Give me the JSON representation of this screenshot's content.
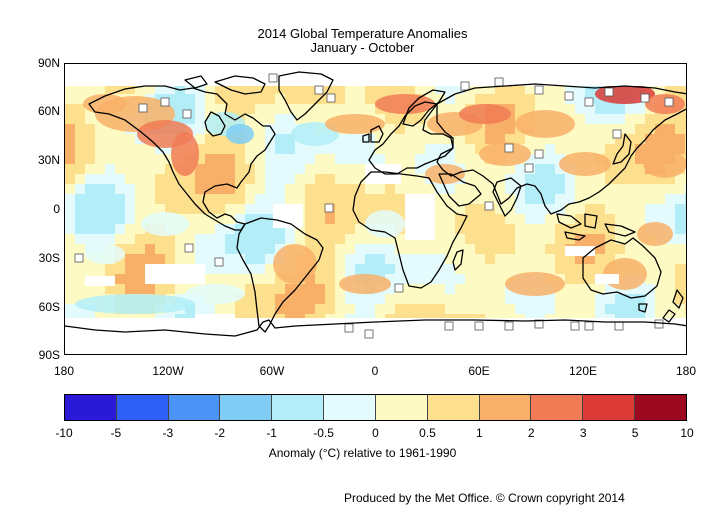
{
  "title": "2014 Global Temperature Anomalies",
  "subtitle": "January - October",
  "lat_labels": [
    "90N",
    "60N",
    "30N",
    "0",
    "30S",
    "60S",
    "90S"
  ],
  "lon_labels": [
    "180",
    "120W",
    "60W",
    "0",
    "60E",
    "120E",
    "180"
  ],
  "colorbar": {
    "ticks": [
      "-10",
      "-5",
      "-3",
      "-2",
      "-1",
      "-0.5",
      "0",
      "0.5",
      "1",
      "2",
      "3",
      "5",
      "10"
    ],
    "colors": [
      "#2a1ad8",
      "#2e5ff7",
      "#4b93f4",
      "#7fcdf4",
      "#b3eef8",
      "#e3fbfc",
      "#fdfbc3",
      "#fde08e",
      "#f8b068",
      "#f07b55",
      "#db3a36",
      "#9d0821"
    ],
    "label": "Anomaly (°C) relative to 1961-1990"
  },
  "credit": "Produced by the Met Office. © Crown copyright 2014"
}
